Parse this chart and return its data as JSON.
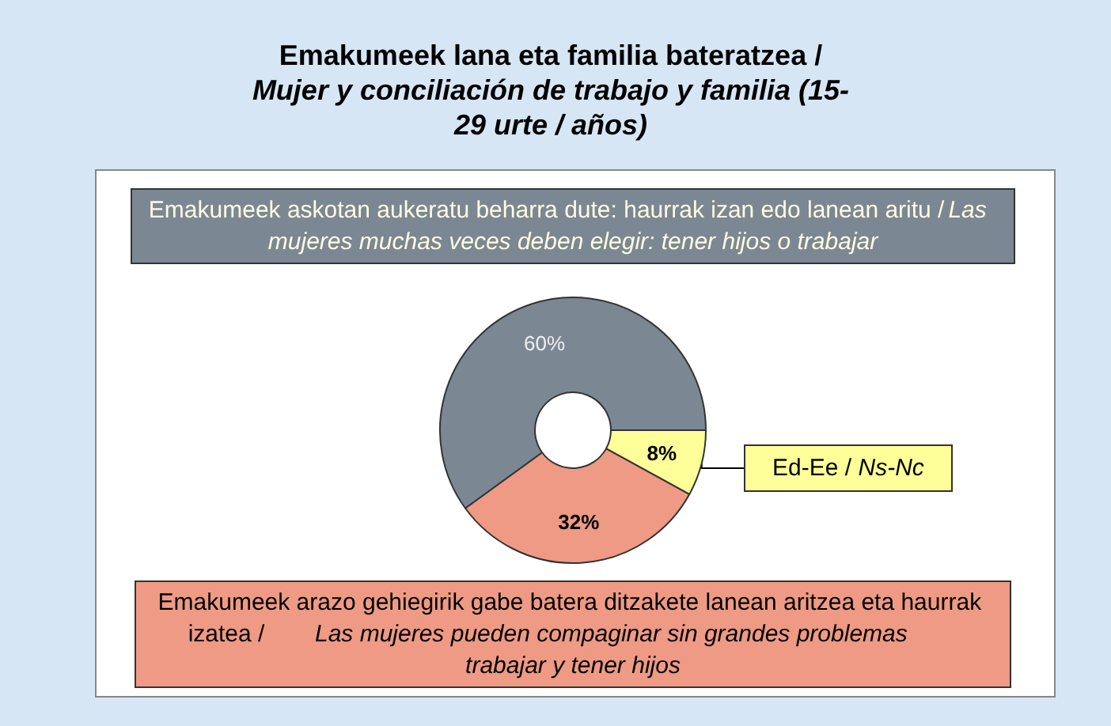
{
  "chart_data": {
    "type": "donut",
    "title": "Emakumeek lana eta familia bateratzea / Mujer y conciliación de trabajo y familia (15-29 urte / años)",
    "categories": [
      "Emakumeek askotan aukeratu beharra dute: haurrak izan edo lanean aritu / Las mujeres muchas veces deben elegir: tener hijos o trabajar",
      "Emakumeek arazo gehiegirik gabe batera ditzakete lanean aritzea eta haurrak izatea / Las mujeres pueden compaginar sin grandes problemas trabajar y tener hijos",
      "Ed-Ee / Ns-Nc"
    ],
    "values": [
      60,
      32,
      8
    ],
    "value_labels": [
      "60%",
      "32%",
      "8%"
    ],
    "colors": [
      "#7b8893",
      "#ee9a84",
      "#ffff99"
    ]
  }
}
